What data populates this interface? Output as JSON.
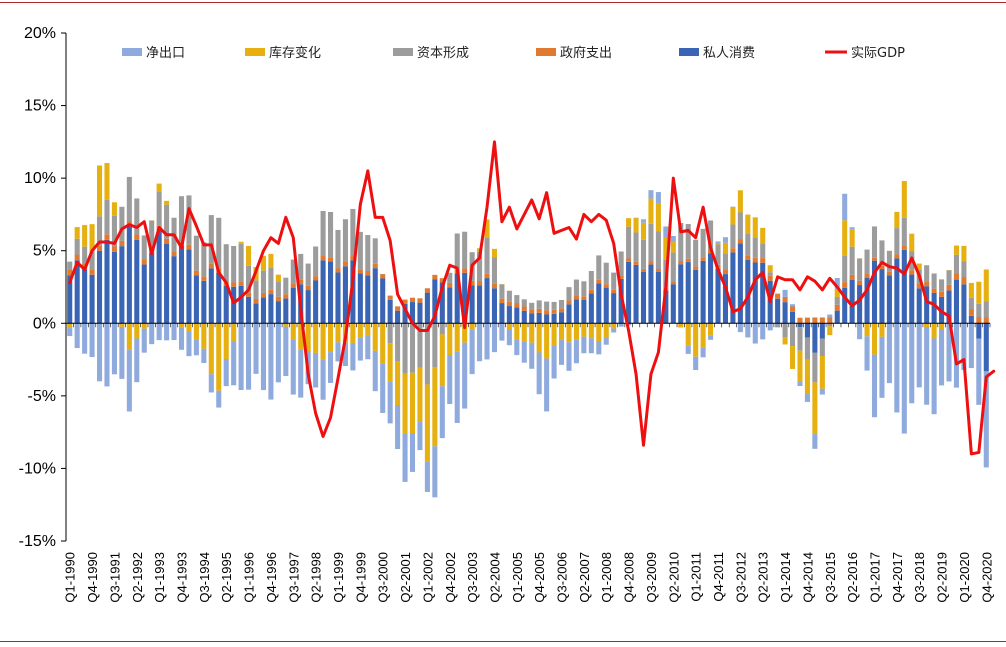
{
  "chart_data": {
    "type": "bar",
    "title": "",
    "xlabel": "",
    "ylabel": "",
    "ylim": [
      -15,
      20
    ],
    "yticks": [
      -15,
      -10,
      -5,
      0,
      5,
      10,
      15,
      20
    ],
    "ytick_labels": [
      "-15%",
      "-10%",
      "-5%",
      "0%",
      "5%",
      "10%",
      "15%",
      "20%"
    ],
    "x_tick_labels": [
      "Q1-1990",
      "Q4-1990",
      "Q3-1991",
      "Q2-1992",
      "Q1-1993",
      "Q4-1993",
      "Q3-1994",
      "Q2-1995",
      "Q1-1996",
      "Q4-1996",
      "Q3-1997",
      "Q2-1998",
      "Q1-1999",
      "Q4-1999",
      "Q3-2000",
      "Q2-2001",
      "Q1-2002",
      "Q4-2002",
      "Q3-2003",
      "Q2-2004",
      "Q1-2005",
      "Q4-2005",
      "Q3-2006",
      "Q2-2007",
      "Q1-2008",
      "Q4-2008",
      "Q3-2009",
      "Q2-2010",
      "Q1-2011",
      "Q4-2011",
      "Q3-2012",
      "Q2-2013",
      "Q1-2014",
      "Q4-2014",
      "Q3-2015",
      "Q2-2016",
      "Q1-2017",
      "Q4-2017",
      "Q3-2018",
      "Q2-2019",
      "Q1-2020",
      "Q4-2020"
    ],
    "start_year": 1990,
    "quarters": 124,
    "legend_position": "top",
    "colors": {
      "net_exports": "#8faadc",
      "inventory": "#e6b010",
      "capital": "#9c9c9c",
      "government": "#e07a30",
      "consumption": "#3a64b4",
      "gdp": "#ee1010",
      "frame": "#b0272f",
      "axis": "#000000"
    },
    "series": [
      {
        "key": "net_exports",
        "name": "净出口",
        "type": "bar",
        "anchors": [
          [
            0,
            -0.5
          ],
          [
            4,
            -4
          ],
          [
            8,
            -3.5
          ],
          [
            12,
            -1
          ],
          [
            16,
            -1.5
          ],
          [
            20,
            -1
          ],
          [
            24,
            -5
          ],
          [
            28,
            -4
          ],
          [
            32,
            -3
          ],
          [
            36,
            -1.5
          ],
          [
            40,
            -2
          ],
          [
            44,
            -3.5
          ],
          [
            48,
            -2
          ],
          [
            52,
            -5
          ],
          [
            56,
            -2
          ],
          [
            60,
            -1
          ],
          [
            64,
            -3
          ],
          [
            68,
            -1.5
          ],
          [
            72,
            -0.5
          ],
          [
            76,
            0
          ],
          [
            80,
            1
          ],
          [
            84,
            -1
          ],
          [
            88,
            0.5
          ],
          [
            92,
            -1.5
          ],
          [
            96,
            0.5
          ],
          [
            100,
            -1
          ],
          [
            104,
            1.5
          ],
          [
            108,
            -4
          ],
          [
            112,
            -6
          ],
          [
            116,
            -5
          ],
          [
            120,
            -3
          ],
          [
            123,
            -6
          ]
        ]
      },
      {
        "key": "inventory",
        "name": "库存变化",
        "type": "bar",
        "anchors": [
          [
            0,
            -0.3
          ],
          [
            4,
            3.5
          ],
          [
            8,
            -1.5
          ],
          [
            12,
            0.5
          ],
          [
            16,
            -0.5
          ],
          [
            20,
            -4
          ],
          [
            24,
            1.5
          ],
          [
            28,
            0.5
          ],
          [
            32,
            -2.5
          ],
          [
            36,
            -1.5
          ],
          [
            40,
            -1
          ],
          [
            44,
            -3.5
          ],
          [
            48,
            -5
          ],
          [
            52,
            -2
          ],
          [
            56,
            1
          ],
          [
            60,
            -1
          ],
          [
            64,
            -2
          ],
          [
            68,
            -1
          ],
          [
            72,
            -1
          ],
          [
            76,
            1
          ],
          [
            80,
            2
          ],
          [
            84,
            -2.5
          ],
          [
            88,
            1
          ],
          [
            92,
            1.5
          ],
          [
            96,
            -0.5
          ],
          [
            100,
            -3.5
          ],
          [
            104,
            2
          ],
          [
            108,
            -2
          ],
          [
            112,
            2
          ],
          [
            116,
            -1
          ],
          [
            120,
            1
          ],
          [
            123,
            2
          ]
        ]
      },
      {
        "key": "capital",
        "name": "资本形成",
        "type": "bar",
        "anchors": [
          [
            0,
            0.5
          ],
          [
            4,
            2
          ],
          [
            8,
            2.5
          ],
          [
            12,
            2
          ],
          [
            16,
            3
          ],
          [
            20,
            3
          ],
          [
            24,
            2
          ],
          [
            28,
            1
          ],
          [
            32,
            2
          ],
          [
            36,
            3
          ],
          [
            40,
            3
          ],
          [
            44,
            -3
          ],
          [
            48,
            -4
          ],
          [
            52,
            2.5
          ],
          [
            56,
            2
          ],
          [
            60,
            0.5
          ],
          [
            64,
            0.5
          ],
          [
            68,
            1
          ],
          [
            72,
            1.5
          ],
          [
            76,
            2
          ],
          [
            80,
            2.5
          ],
          [
            84,
            2
          ],
          [
            88,
            1.5
          ],
          [
            92,
            1.5
          ],
          [
            96,
            -1
          ],
          [
            100,
            -2
          ],
          [
            104,
            1.5
          ],
          [
            108,
            2
          ],
          [
            112,
            1.5
          ],
          [
            116,
            1
          ],
          [
            120,
            1
          ],
          [
            123,
            1
          ]
        ]
      },
      {
        "key": "government",
        "name": "政府支出",
        "type": "bar",
        "anchors": [
          [
            0,
            0.4
          ],
          [
            20,
            0.3
          ],
          [
            40,
            0.3
          ],
          [
            60,
            0.3
          ],
          [
            80,
            0.2
          ],
          [
            100,
            0.4
          ],
          [
            104,
            0.4
          ],
          [
            108,
            0.2
          ],
          [
            112,
            0.3
          ],
          [
            116,
            0.3
          ],
          [
            120,
            0.5
          ],
          [
            123,
            0.4
          ]
        ]
      },
      {
        "key": "consumption",
        "name": "私人消费",
        "type": "bar",
        "anchors": [
          [
            0,
            3
          ],
          [
            4,
            5
          ],
          [
            8,
            5.5
          ],
          [
            12,
            5.5
          ],
          [
            16,
            4.5
          ],
          [
            20,
            3
          ],
          [
            24,
            2
          ],
          [
            28,
            1.5
          ],
          [
            32,
            3
          ],
          [
            36,
            4
          ],
          [
            40,
            4
          ],
          [
            44,
            1
          ],
          [
            48,
            2
          ],
          [
            52,
            3.5
          ],
          [
            56,
            2.5
          ],
          [
            60,
            1
          ],
          [
            64,
            0.5
          ],
          [
            68,
            1.5
          ],
          [
            72,
            2.5
          ],
          [
            76,
            4
          ],
          [
            80,
            3
          ],
          [
            84,
            4
          ],
          [
            88,
            4.5
          ],
          [
            92,
            4.5
          ],
          [
            96,
            1.5
          ],
          [
            100,
            -2
          ],
          [
            104,
            2
          ],
          [
            108,
            4
          ],
          [
            112,
            4
          ],
          [
            116,
            2
          ],
          [
            120,
            2.5
          ],
          [
            123,
            -3
          ]
        ]
      },
      {
        "key": "gdp",
        "name": "实际GDP",
        "type": "line",
        "values": [
          2.8,
          4.2,
          3.7,
          5.0,
          5.6,
          5.6,
          5.5,
          6.5,
          6.8,
          6.6,
          7.0,
          4.8,
          6.6,
          6.1,
          6.1,
          5.2,
          7.9,
          6.7,
          5.4,
          5.4,
          3.5,
          2.8,
          1.4,
          1.8,
          2.3,
          3.6,
          5.0,
          5.9,
          5.5,
          7.3,
          5.9,
          1.0,
          -3.5,
          -6.2,
          -7.8,
          -6.5,
          -3.8,
          -1.0,
          3.0,
          8.2,
          10.5,
          7.3,
          7.3,
          5.7,
          2.0,
          1.0,
          0.0,
          -0.5,
          -0.5,
          0.5,
          2.5,
          4.0,
          3.8,
          -0.3,
          4.0,
          4.5,
          8.0,
          12.5,
          7.0,
          8.0,
          6.5,
          7.5,
          8.5,
          7.2,
          9.0,
          6.2,
          6.4,
          6.6,
          5.8,
          7.5,
          7.0,
          7.5,
          7.1,
          5.5,
          2.0,
          -0.5,
          -3.5,
          -8.4,
          -3.5,
          -2.0,
          2.5,
          10.0,
          6.3,
          6.4,
          5.9,
          8.0,
          5.2,
          3.7,
          2.5,
          0.8,
          1.0,
          1.8,
          3.0,
          3.5,
          1.5,
          3.2,
          3.0,
          3.0,
          2.3,
          3.2,
          2.9,
          2.3,
          3.1,
          2.5,
          1.8,
          1.2,
          1.6,
          2.3,
          3.5,
          4.2,
          3.9,
          3.8,
          3.4,
          4.5,
          3.3,
          1.5,
          1.3,
          0.8,
          0.5,
          -2.8,
          -2.5,
          -9.0,
          -8.9,
          -3.7,
          -3.3
        ]
      }
    ]
  }
}
